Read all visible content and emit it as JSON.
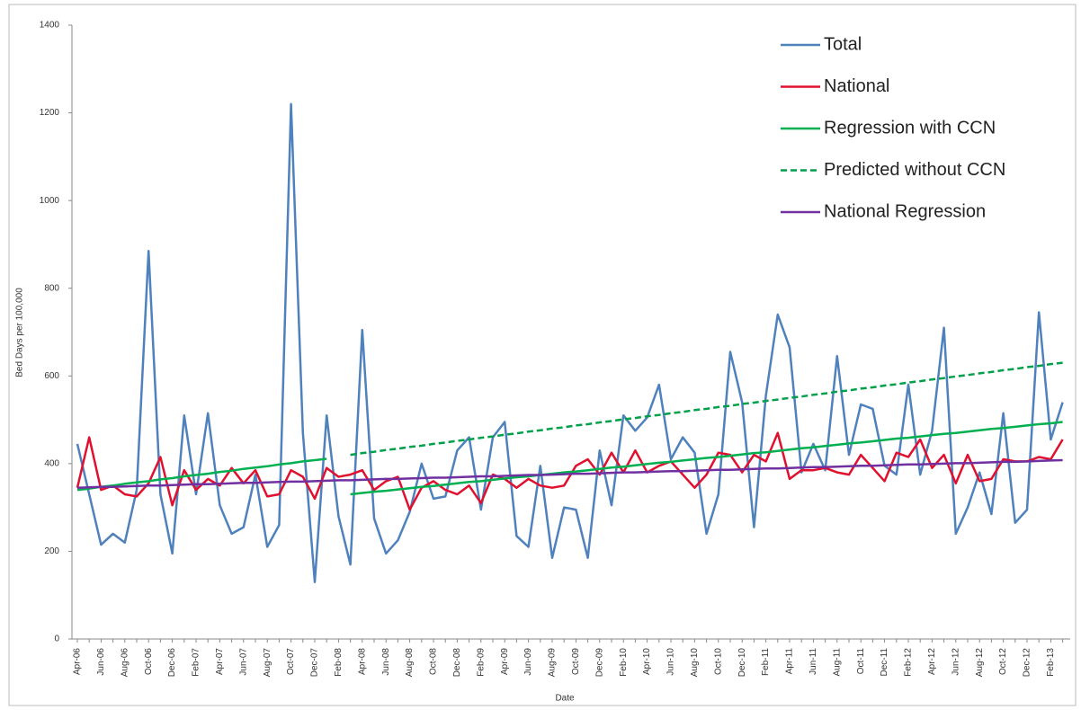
{
  "chart_data": {
    "type": "line",
    "xlabel": "Date",
    "ylabel": "Bed Days per 100,000",
    "ylim": [
      0,
      1400
    ],
    "yticks": [
      0,
      200,
      400,
      600,
      800,
      1000,
      1200,
      1400
    ],
    "legend": "upper right",
    "grid": false,
    "categories": [
      "Apr-06",
      null,
      "Jun-06",
      null,
      "Aug-06",
      null,
      "Oct-06",
      null,
      "Dec-06",
      null,
      "Feb-07",
      null,
      "Apr-07",
      null,
      "Jun-07",
      null,
      "Aug-07",
      null,
      "Oct-07",
      null,
      "Dec-07",
      null,
      "Feb-08",
      null,
      "Apr-08",
      null,
      "Jun-08",
      null,
      "Aug-08",
      null,
      "Oct-08",
      null,
      "Dec-08",
      null,
      "Feb-09",
      null,
      "Apr-09",
      null,
      "Jun-09",
      null,
      "Aug-09",
      null,
      "Oct-09",
      null,
      "Dec-09",
      null,
      "Feb-10",
      null,
      "Apr-10",
      null,
      "Jun-10",
      null,
      "Aug-10",
      null,
      "Oct-10",
      null,
      "Dec-10",
      null,
      "Feb-11",
      null,
      "Apr-11",
      null,
      "Jun-11",
      null,
      "Aug-11",
      null,
      "Oct-11",
      null,
      "Dec-11",
      null,
      "Feb-12",
      null,
      "Apr-12",
      null,
      "Jun-12",
      null,
      "Aug-12",
      null,
      "Oct-12",
      null,
      "Dec-12",
      null,
      "Feb-13",
      null
    ],
    "series": [
      {
        "name": "Total",
        "color": "#4f81bd",
        "dashed": false,
        "values": [
          445,
          330,
          215,
          240,
          220,
          340,
          885,
          330,
          195,
          510,
          330,
          515,
          305,
          240,
          255,
          375,
          210,
          260,
          1220,
          470,
          130,
          510,
          280,
          170,
          705,
          275,
          195,
          225,
          290,
          400,
          320,
          325,
          430,
          460,
          295,
          460,
          495,
          235,
          210,
          395,
          185,
          300,
          295,
          185,
          430,
          305,
          510,
          475,
          505,
          580,
          410,
          460,
          425,
          240,
          330,
          655,
          540,
          255,
          555,
          740,
          665,
          380,
          445,
          385,
          645,
          420,
          535,
          525,
          395,
          375,
          580,
          375,
          475,
          710,
          240,
          300,
          380,
          285,
          515,
          265,
          295,
          745,
          455,
          540
        ]
      },
      {
        "name": "National",
        "color": "#e0102f",
        "dashed": false,
        "values": [
          345,
          460,
          340,
          350,
          330,
          325,
          355,
          415,
          305,
          385,
          340,
          365,
          350,
          390,
          355,
          385,
          325,
          330,
          385,
          370,
          320,
          390,
          370,
          375,
          385,
          340,
          360,
          370,
          295,
          345,
          360,
          340,
          330,
          350,
          310,
          375,
          365,
          345,
          365,
          350,
          345,
          350,
          395,
          410,
          375,
          425,
          380,
          430,
          380,
          395,
          405,
          375,
          345,
          375,
          425,
          420,
          380,
          420,
          405,
          470,
          365,
          385,
          385,
          390,
          380,
          375,
          420,
          390,
          360,
          425,
          415,
          455,
          390,
          420,
          355,
          420,
          360,
          365,
          410,
          405,
          405,
          415,
          410,
          455
        ]
      },
      {
        "name": "Regression with CCN",
        "color": "#00b050",
        "dashed": false,
        "values": [
          340,
          343,
          347,
          350,
          354,
          357,
          360,
          364,
          367,
          371,
          374,
          377,
          381,
          384,
          388,
          391,
          394,
          398,
          401,
          405,
          408,
          411,
          null,
          330,
          333,
          336,
          338,
          341,
          344,
          347,
          349,
          352,
          355,
          358,
          360,
          363,
          366,
          369,
          371,
          374,
          377,
          380,
          382,
          385,
          388,
          391,
          393,
          396,
          399,
          402,
          404,
          407,
          410,
          413,
          415,
          418,
          421,
          424,
          426,
          429,
          432,
          435,
          437,
          440,
          443,
          446,
          448,
          451,
          454,
          457,
          459,
          462,
          465,
          468,
          470,
          473,
          476,
          479,
          481,
          484,
          487,
          490,
          492,
          495
        ]
      },
      {
        "name": "Predicted without CCN",
        "color": "#00a04a",
        "dashed": true,
        "values": [
          null,
          null,
          null,
          null,
          null,
          null,
          null,
          null,
          null,
          null,
          null,
          null,
          null,
          null,
          null,
          null,
          null,
          null,
          null,
          null,
          null,
          null,
          null,
          420,
          424,
          427,
          431,
          434,
          438,
          441,
          445,
          448,
          452,
          455,
          459,
          462,
          466,
          469,
          473,
          476,
          480,
          483,
          487,
          490,
          494,
          497,
          501,
          504,
          508,
          511,
          515,
          518,
          522,
          525,
          529,
          532,
          536,
          539,
          543,
          546,
          550,
          553,
          557,
          560,
          564,
          567,
          571,
          574,
          578,
          581,
          585,
          588,
          592,
          595,
          599,
          602,
          606,
          609,
          613,
          616,
          620,
          623,
          627,
          630
        ]
      },
      {
        "name": "National Regression",
        "color": "#7030a0",
        "dashed": false,
        "values": [
          345,
          346,
          347,
          347,
          348,
          349,
          350,
          350,
          351,
          352,
          353,
          353,
          354,
          355,
          356,
          356,
          357,
          358,
          359,
          359,
          360,
          361,
          362,
          362,
          363,
          364,
          365,
          365,
          366,
          367,
          368,
          368,
          369,
          370,
          371,
          371,
          372,
          373,
          374,
          374,
          375,
          376,
          377,
          377,
          378,
          379,
          380,
          380,
          381,
          382,
          383,
          383,
          384,
          385,
          386,
          386,
          387,
          388,
          389,
          389,
          390,
          391,
          392,
          392,
          393,
          394,
          395,
          395,
          396,
          397,
          398,
          398,
          399,
          400,
          401,
          401,
          402,
          403,
          404,
          404,
          405,
          406,
          407,
          408
        ]
      }
    ]
  }
}
